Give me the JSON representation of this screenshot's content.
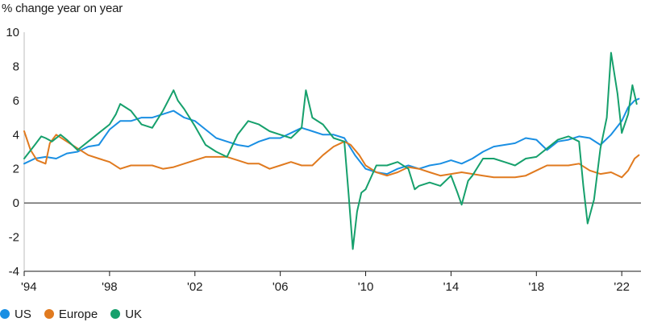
{
  "chart_data": {
    "type": "line",
    "ylabel": "% change year on year",
    "xlabel": "",
    "ylim": [
      -4,
      10
    ],
    "xlim": [
      1994,
      2022.9
    ],
    "y_ticks": [
      10,
      8,
      6,
      4,
      2,
      0,
      -2,
      -4
    ],
    "x_ticks": [
      {
        "value": 1994,
        "label": "'94"
      },
      {
        "value": 1998,
        "label": "'98"
      },
      {
        "value": 2002,
        "label": "'02"
      },
      {
        "value": 2006,
        "label": "'06"
      },
      {
        "value": 2010,
        "label": "'10"
      },
      {
        "value": 2014,
        "label": "'14"
      },
      {
        "value": 2018,
        "label": "'18"
      },
      {
        "value": 2022,
        "label": "'22"
      }
    ],
    "grid": false,
    "zero_line": true,
    "legend_position": "bottom-left",
    "series": [
      {
        "name": "US",
        "color": "#1a8fe3",
        "points": [
          [
            1994.0,
            2.3
          ],
          [
            1994.5,
            2.6
          ],
          [
            1995.0,
            2.7
          ],
          [
            1995.5,
            2.6
          ],
          [
            1996.0,
            2.9
          ],
          [
            1996.5,
            3.0
          ],
          [
            1997.0,
            3.3
          ],
          [
            1997.5,
            3.4
          ],
          [
            1998.0,
            4.3
          ],
          [
            1998.5,
            4.8
          ],
          [
            1999.0,
            4.8
          ],
          [
            1999.5,
            5.0
          ],
          [
            2000.0,
            5.0
          ],
          [
            2000.5,
            5.2
          ],
          [
            2001.0,
            5.4
          ],
          [
            2001.5,
            5.0
          ],
          [
            2002.0,
            4.8
          ],
          [
            2002.5,
            4.3
          ],
          [
            2003.0,
            3.8
          ],
          [
            2003.5,
            3.6
          ],
          [
            2004.0,
            3.4
          ],
          [
            2004.5,
            3.3
          ],
          [
            2005.0,
            3.6
          ],
          [
            2005.5,
            3.8
          ],
          [
            2006.0,
            3.8
          ],
          [
            2006.5,
            4.1
          ],
          [
            2007.0,
            4.4
          ],
          [
            2007.5,
            4.2
          ],
          [
            2008.0,
            4.0
          ],
          [
            2008.5,
            4.0
          ],
          [
            2009.0,
            3.8
          ],
          [
            2009.5,
            2.8
          ],
          [
            2010.0,
            2.0
          ],
          [
            2010.5,
            1.8
          ],
          [
            2011.0,
            1.7
          ],
          [
            2011.5,
            2.0
          ],
          [
            2012.0,
            2.2
          ],
          [
            2012.5,
            2.0
          ],
          [
            2013.0,
            2.2
          ],
          [
            2013.5,
            2.3
          ],
          [
            2014.0,
            2.5
          ],
          [
            2014.5,
            2.3
          ],
          [
            2015.0,
            2.6
          ],
          [
            2015.5,
            3.0
          ],
          [
            2016.0,
            3.3
          ],
          [
            2016.5,
            3.4
          ],
          [
            2017.0,
            3.5
          ],
          [
            2017.5,
            3.8
          ],
          [
            2018.0,
            3.7
          ],
          [
            2018.5,
            3.1
          ],
          [
            2019.0,
            3.6
          ],
          [
            2019.5,
            3.7
          ],
          [
            2020.0,
            3.9
          ],
          [
            2020.5,
            3.8
          ],
          [
            2021.0,
            3.4
          ],
          [
            2021.5,
            4.0
          ],
          [
            2022.0,
            4.8
          ],
          [
            2022.3,
            5.6
          ],
          [
            2022.6,
            6.0
          ],
          [
            2022.8,
            6.1
          ]
        ]
      },
      {
        "name": "Europe",
        "color": "#e07a1f",
        "points": [
          [
            1994.0,
            4.2
          ],
          [
            1994.3,
            3.1
          ],
          [
            1994.6,
            2.5
          ],
          [
            1995.0,
            2.3
          ],
          [
            1995.2,
            3.5
          ],
          [
            1995.5,
            4.0
          ],
          [
            1996.0,
            3.6
          ],
          [
            1996.5,
            3.2
          ],
          [
            1997.0,
            2.8
          ],
          [
            1997.5,
            2.6
          ],
          [
            1998.0,
            2.4
          ],
          [
            1998.5,
            2.0
          ],
          [
            1999.0,
            2.2
          ],
          [
            1999.5,
            2.2
          ],
          [
            2000.0,
            2.2
          ],
          [
            2000.5,
            2.0
          ],
          [
            2001.0,
            2.1
          ],
          [
            2001.5,
            2.3
          ],
          [
            2002.0,
            2.5
          ],
          [
            2002.5,
            2.7
          ],
          [
            2003.0,
            2.7
          ],
          [
            2003.5,
            2.7
          ],
          [
            2004.0,
            2.5
          ],
          [
            2004.5,
            2.3
          ],
          [
            2005.0,
            2.3
          ],
          [
            2005.5,
            2.0
          ],
          [
            2006.0,
            2.2
          ],
          [
            2006.5,
            2.4
          ],
          [
            2007.0,
            2.2
          ],
          [
            2007.5,
            2.2
          ],
          [
            2008.0,
            2.8
          ],
          [
            2008.5,
            3.3
          ],
          [
            2009.0,
            3.6
          ],
          [
            2009.3,
            3.4
          ],
          [
            2009.7,
            2.8
          ],
          [
            2010.0,
            2.2
          ],
          [
            2010.5,
            1.8
          ],
          [
            2011.0,
            1.6
          ],
          [
            2011.5,
            1.8
          ],
          [
            2012.0,
            2.1
          ],
          [
            2012.5,
            2.0
          ],
          [
            2013.0,
            1.8
          ],
          [
            2013.5,
            1.6
          ],
          [
            2014.0,
            1.7
          ],
          [
            2014.5,
            1.8
          ],
          [
            2015.0,
            1.7
          ],
          [
            2015.5,
            1.6
          ],
          [
            2016.0,
            1.5
          ],
          [
            2016.5,
            1.5
          ],
          [
            2017.0,
            1.5
          ],
          [
            2017.5,
            1.6
          ],
          [
            2018.0,
            1.9
          ],
          [
            2018.5,
            2.2
          ],
          [
            2019.0,
            2.2
          ],
          [
            2019.5,
            2.2
          ],
          [
            2020.0,
            2.3
          ],
          [
            2020.5,
            1.9
          ],
          [
            2021.0,
            1.7
          ],
          [
            2021.5,
            1.8
          ],
          [
            2022.0,
            1.5
          ],
          [
            2022.3,
            1.9
          ],
          [
            2022.6,
            2.6
          ],
          [
            2022.8,
            2.8
          ]
        ]
      },
      {
        "name": "UK",
        "color": "#16a06c",
        "points": [
          [
            1994.0,
            2.6
          ],
          [
            1994.5,
            3.4
          ],
          [
            1994.8,
            3.9
          ],
          [
            1995.0,
            3.8
          ],
          [
            1995.3,
            3.6
          ],
          [
            1995.7,
            4.0
          ],
          [
            1996.0,
            3.7
          ],
          [
            1996.5,
            3.1
          ],
          [
            1997.0,
            3.6
          ],
          [
            1997.5,
            4.1
          ],
          [
            1998.0,
            4.6
          ],
          [
            1998.3,
            5.2
          ],
          [
            1998.5,
            5.8
          ],
          [
            1999.0,
            5.4
          ],
          [
            1999.5,
            4.6
          ],
          [
            2000.0,
            4.4
          ],
          [
            2000.5,
            5.4
          ],
          [
            2001.0,
            6.6
          ],
          [
            2001.2,
            6.0
          ],
          [
            2001.5,
            5.5
          ],
          [
            2002.0,
            4.5
          ],
          [
            2002.5,
            3.4
          ],
          [
            2003.0,
            3.0
          ],
          [
            2003.5,
            2.7
          ],
          [
            2004.0,
            4.0
          ],
          [
            2004.5,
            4.8
          ],
          [
            2005.0,
            4.6
          ],
          [
            2005.5,
            4.2
          ],
          [
            2006.0,
            4.0
          ],
          [
            2006.5,
            3.8
          ],
          [
            2007.0,
            4.4
          ],
          [
            2007.2,
            6.6
          ],
          [
            2007.5,
            5.0
          ],
          [
            2008.0,
            4.6
          ],
          [
            2008.5,
            3.8
          ],
          [
            2009.0,
            3.6
          ],
          [
            2009.2,
            0.5
          ],
          [
            2009.4,
            -2.7
          ],
          [
            2009.6,
            -0.5
          ],
          [
            2009.8,
            0.6
          ],
          [
            2010.0,
            0.8
          ],
          [
            2010.5,
            2.2
          ],
          [
            2011.0,
            2.2
          ],
          [
            2011.5,
            2.4
          ],
          [
            2012.0,
            2.0
          ],
          [
            2012.3,
            0.8
          ],
          [
            2012.5,
            1.0
          ],
          [
            2013.0,
            1.2
          ],
          [
            2013.5,
            1.0
          ],
          [
            2014.0,
            1.6
          ],
          [
            2014.3,
            0.6
          ],
          [
            2014.5,
            -0.1
          ],
          [
            2014.8,
            1.3
          ],
          [
            2015.0,
            1.6
          ],
          [
            2015.5,
            2.6
          ],
          [
            2016.0,
            2.6
          ],
          [
            2016.5,
            2.4
          ],
          [
            2017.0,
            2.2
          ],
          [
            2017.5,
            2.6
          ],
          [
            2018.0,
            2.7
          ],
          [
            2018.5,
            3.2
          ],
          [
            2019.0,
            3.7
          ],
          [
            2019.5,
            3.9
          ],
          [
            2020.0,
            3.6
          ],
          [
            2020.2,
            1.0
          ],
          [
            2020.4,
            -1.2
          ],
          [
            2020.7,
            0.2
          ],
          [
            2021.0,
            3.2
          ],
          [
            2021.3,
            5.0
          ],
          [
            2021.5,
            8.8
          ],
          [
            2021.8,
            6.4
          ],
          [
            2022.0,
            4.1
          ],
          [
            2022.3,
            5.2
          ],
          [
            2022.5,
            6.9
          ],
          [
            2022.7,
            5.8
          ]
        ]
      }
    ]
  },
  "legend": {
    "items": [
      {
        "label": "US",
        "color": "#1a8fe3"
      },
      {
        "label": "Europe",
        "color": "#e07a1f"
      },
      {
        "label": "UK",
        "color": "#16a06c"
      }
    ]
  }
}
